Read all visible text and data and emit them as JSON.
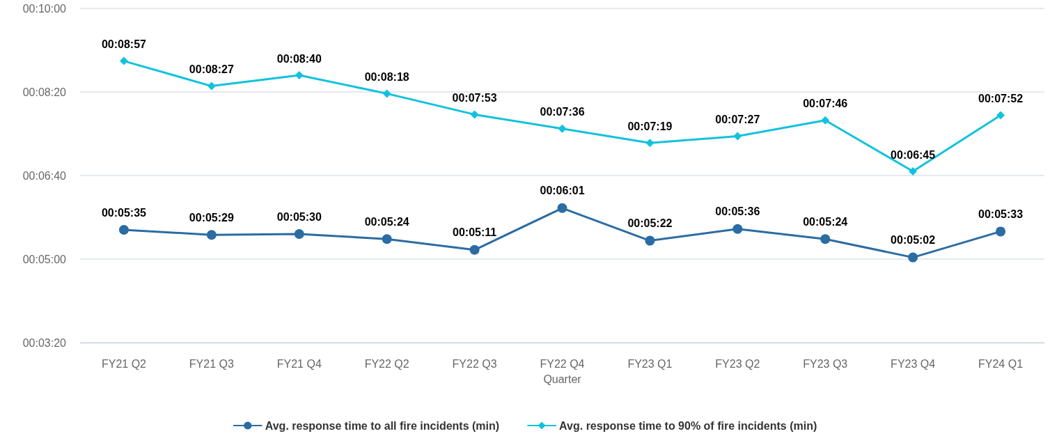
{
  "chart_data": {
    "type": "line",
    "xlabel": "Quarter",
    "categories": [
      "FY21 Q2",
      "FY21 Q3",
      "FY21 Q4",
      "FY22 Q2",
      "FY22 Q3",
      "FY22 Q4",
      "FY23 Q1",
      "FY23 Q2",
      "FY23 Q3",
      "FY23 Q4",
      "FY24 Q1"
    ],
    "series": [
      {
        "name": "Avg. response time to all fire incidents (min)",
        "color": "#2b6ca3",
        "marker": "circle",
        "values": [
          335,
          329,
          330,
          324,
          311,
          361,
          322,
          336,
          324,
          302,
          333
        ],
        "value_labels": [
          "00:05:35",
          "00:05:29",
          "00:05:30",
          "00:05:24",
          "00:05:11",
          "00:06:01",
          "00:05:22",
          "00:05:36",
          "00:05:24",
          "00:05:02",
          "00:05:33"
        ]
      },
      {
        "name": "Avg. response time to 90% of fire incidents (min)",
        "color": "#12c2dc",
        "marker": "diamond",
        "values": [
          537,
          507,
          520,
          498,
          473,
          456,
          439,
          447,
          466,
          405,
          472
        ],
        "value_labels": [
          "00:08:57",
          "00:08:27",
          "00:08:40",
          "00:08:18",
          "00:07:53",
          "00:07:36",
          "00:07:19",
          "00:07:27",
          "00:07:46",
          "00:06:45",
          "00:07:52"
        ]
      }
    ],
    "ylim": [
      200,
      600
    ],
    "yticks": [
      {
        "value": 200,
        "label": "00:03:20"
      },
      {
        "value": 300,
        "label": "00:05:00"
      },
      {
        "value": 400,
        "label": "00:06:40"
      },
      {
        "value": 500,
        "label": "00:08:20"
      },
      {
        "value": 600,
        "label": "00:10:00"
      }
    ],
    "grid": "y",
    "legend": "bottom"
  }
}
